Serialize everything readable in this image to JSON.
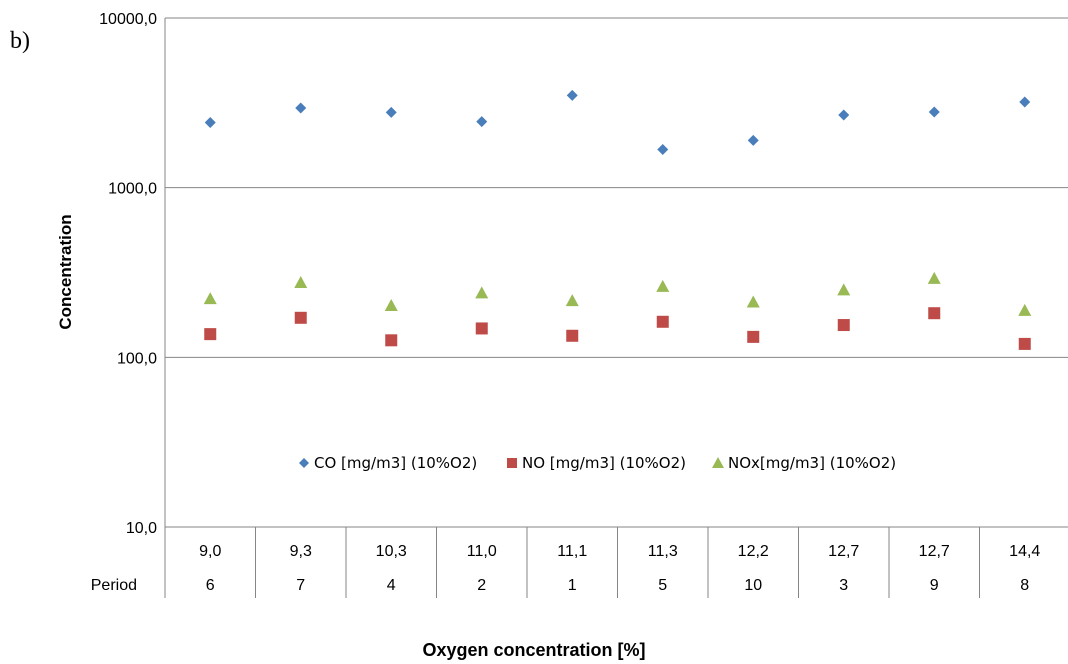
{
  "panel_label": "b)",
  "chart_data": {
    "type": "scatter",
    "yscale": "log",
    "ylim": [
      10,
      10000
    ],
    "yticks": [
      "10,0",
      "100,0",
      "1000,0",
      "10000,0"
    ],
    "ylabel": "Concentration",
    "xlabel": "Oxygen concentration [%]",
    "categories": [
      "9,0",
      "9,3",
      "10,3",
      "11,0",
      "11,1",
      "11,3",
      "12,2",
      "12,7",
      "12,7",
      "14,4"
    ],
    "period_label": "Period",
    "periods": [
      "6",
      "7",
      "4",
      "2",
      "1",
      "5",
      "10",
      "3",
      "9",
      "8"
    ],
    "legend_position": "inside-lower-center",
    "series": [
      {
        "name": "CO [mg/m3] (10%O2)",
        "marker": "diamond",
        "color": "#4a7ebb",
        "values": [
          2420,
          2950,
          2780,
          2450,
          3500,
          1680,
          1900,
          2680,
          2790,
          3200
        ]
      },
      {
        "name": "NO [mg/m3] (10%O2)",
        "marker": "square",
        "color": "#be4b48",
        "values": [
          137,
          171,
          126,
          148,
          134,
          162,
          132,
          155,
          182,
          120
        ]
      },
      {
        "name": "NOx[mg/m3] (10%O2)",
        "marker": "triangle",
        "color": "#98b954",
        "values": [
          222,
          276,
          202,
          240,
          216,
          262,
          212,
          250,
          292,
          189
        ]
      }
    ]
  }
}
